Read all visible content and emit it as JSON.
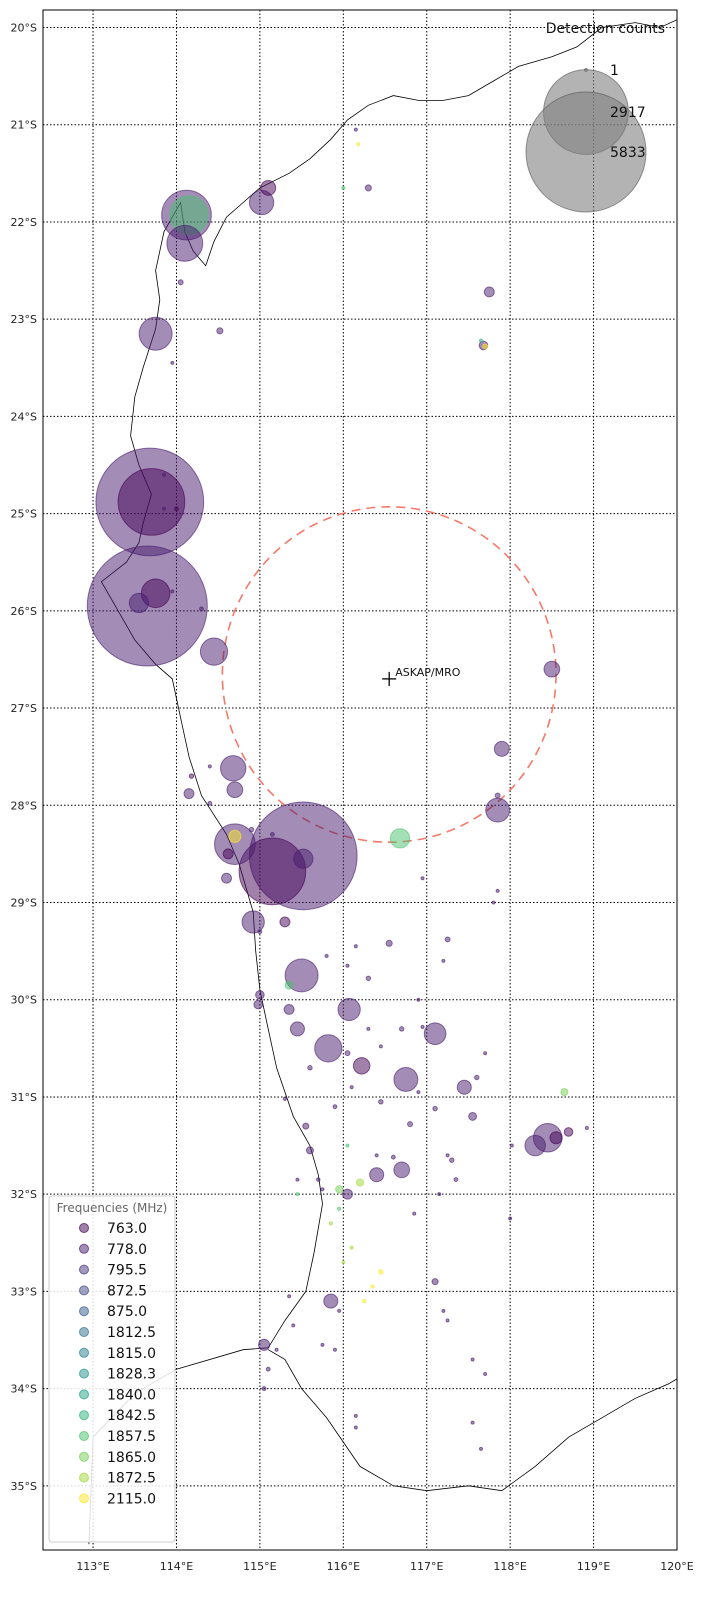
{
  "colors": {
    "grid": "#000000",
    "coast": "#000000",
    "ring": "#f4796b",
    "size_legend_fill": "#808080",
    "legend_border": "#cccccc"
  },
  "map": {
    "lon_range": [
      112.4,
      120.0
    ],
    "lat_range": [
      -35.66,
      -19.82
    ],
    "lon_ticks": [
      113,
      114,
      115,
      116,
      117,
      118,
      119,
      120
    ],
    "lon_tick_labels": [
      "113°E",
      "114°E",
      "115°E",
      "116°E",
      "117°E",
      "118°E",
      "119°E",
      "120°E"
    ],
    "lat_ticks": [
      -20,
      -21,
      -22,
      -23,
      -24,
      -25,
      -26,
      -27,
      -28,
      -29,
      -30,
      -31,
      -32,
      -33,
      -34,
      -35
    ],
    "lat_tick_labels": [
      "20°S",
      "21°S",
      "22°S",
      "23°S",
      "24°S",
      "25°S",
      "26°S",
      "27°S",
      "28°S",
      "29°S",
      "30°S",
      "31°S",
      "32°S",
      "33°S",
      "34°S",
      "35°S"
    ],
    "grid": "dotted"
  },
  "site": {
    "label": "ASKAP/MRO",
    "lon": 116.55,
    "lat": -26.7,
    "ring_lon_span": [
      114.55,
      118.55
    ],
    "ring_lat_span": [
      -28.38,
      -24.93
    ]
  },
  "coastline": [
    [
      112.95,
      -35.6
    ],
    [
      113.0,
      -34.5
    ],
    [
      113.5,
      -34.05
    ],
    [
      114.0,
      -33.8
    ],
    [
      114.8,
      -33.6
    ],
    [
      115.1,
      -33.58
    ],
    [
      115.3,
      -33.3
    ],
    [
      115.55,
      -33.0
    ],
    [
      115.65,
      -32.6
    ],
    [
      115.75,
      -32.1
    ],
    [
      115.7,
      -31.8
    ],
    [
      115.6,
      -31.5
    ],
    [
      115.4,
      -31.2
    ],
    [
      115.2,
      -30.7
    ],
    [
      115.1,
      -30.3
    ],
    [
      115.0,
      -29.9
    ],
    [
      114.95,
      -29.5
    ],
    [
      114.92,
      -29.1
    ],
    [
      114.75,
      -28.6
    ],
    [
      114.6,
      -28.3
    ],
    [
      114.3,
      -27.9
    ],
    [
      114.15,
      -27.5
    ],
    [
      114.05,
      -27.1
    ],
    [
      113.95,
      -26.7
    ],
    [
      113.75,
      -26.55
    ],
    [
      113.5,
      -26.3
    ],
    [
      113.3,
      -26.0
    ],
    [
      113.1,
      -25.7
    ],
    [
      113.4,
      -25.5
    ],
    [
      113.55,
      -25.3
    ],
    [
      113.6,
      -25.1
    ],
    [
      113.7,
      -24.8
    ],
    [
      113.55,
      -24.5
    ],
    [
      113.45,
      -24.2
    ],
    [
      113.5,
      -23.8
    ],
    [
      113.6,
      -23.5
    ],
    [
      113.75,
      -23.1
    ],
    [
      113.8,
      -22.8
    ],
    [
      113.75,
      -22.5
    ],
    [
      113.85,
      -22.1
    ],
    [
      114.05,
      -21.8
    ],
    [
      114.1,
      -22.1
    ],
    [
      114.2,
      -22.3
    ],
    [
      114.35,
      -22.45
    ],
    [
      114.45,
      -22.2
    ],
    [
      114.6,
      -21.95
    ],
    [
      114.8,
      -21.8
    ],
    [
      115.0,
      -21.65
    ],
    [
      115.35,
      -21.5
    ],
    [
      115.6,
      -21.35
    ],
    [
      115.85,
      -21.15
    ],
    [
      116.05,
      -20.95
    ],
    [
      116.3,
      -20.8
    ],
    [
      116.6,
      -20.7
    ],
    [
      116.9,
      -20.75
    ],
    [
      117.2,
      -20.75
    ],
    [
      117.5,
      -20.7
    ],
    [
      117.8,
      -20.55
    ],
    [
      118.1,
      -20.4
    ],
    [
      118.5,
      -20.3
    ],
    [
      118.8,
      -20.2
    ],
    [
      119.1,
      -20.0
    ],
    [
      119.5,
      -19.95
    ],
    [
      119.8,
      -20.0
    ],
    [
      120.0,
      -19.92
    ]
  ],
  "south_coast": [
    [
      115.1,
      -33.6
    ],
    [
      115.3,
      -33.7
    ],
    [
      115.5,
      -34.0
    ],
    [
      115.8,
      -34.3
    ],
    [
      116.2,
      -34.8
    ],
    [
      116.6,
      -35.0
    ],
    [
      117.0,
      -35.05
    ],
    [
      117.5,
      -35.0
    ],
    [
      117.9,
      -35.05
    ],
    [
      118.3,
      -34.8
    ],
    [
      118.7,
      -34.5
    ],
    [
      119.1,
      -34.3
    ],
    [
      119.5,
      -34.1
    ],
    [
      119.9,
      -33.95
    ],
    [
      120.0,
      -33.9
    ]
  ],
  "frequency_legend": {
    "title": "Frequencies (MHz)",
    "items": [
      {
        "label": "763.0",
        "color": "#440154"
      },
      {
        "label": "778.0",
        "color": "#481b6d"
      },
      {
        "label": "795.5",
        "color": "#46327e"
      },
      {
        "label": "872.5",
        "color": "#3f4788"
      },
      {
        "label": "875.0",
        "color": "#365c8d"
      },
      {
        "label": "1812.5",
        "color": "#2e6e8e"
      },
      {
        "label": "1815.0",
        "color": "#277f8e"
      },
      {
        "label": "1828.3",
        "color": "#21918c"
      },
      {
        "label": "1840.0",
        "color": "#1fa187"
      },
      {
        "label": "1842.5",
        "color": "#2db27d"
      },
      {
        "label": "1857.5",
        "color": "#4ac16d"
      },
      {
        "label": "1865.0",
        "color": "#73d056"
      },
      {
        "label": "1872.5",
        "color": "#a0da39"
      },
      {
        "label": "2115.0",
        "color": "#fde725"
      }
    ]
  },
  "size_legend": {
    "title": "Detection counts",
    "items": [
      {
        "label": "1",
        "count": 1
      },
      {
        "label": "2917",
        "count": 2917
      },
      {
        "label": "5833",
        "count": 5833
      }
    ]
  },
  "detections": [
    {
      "lon": 113.65,
      "lat": -25.95,
      "count": 5833,
      "color": "#481b6d"
    },
    {
      "lon": 113.68,
      "lat": -24.88,
      "count": 4700,
      "color": "#481b6d"
    },
    {
      "lon": 113.7,
      "lat": -24.88,
      "count": 1800,
      "color": "#440154"
    },
    {
      "lon": 115.52,
      "lat": -28.52,
      "count": 4700,
      "color": "#481b6d"
    },
    {
      "lon": 115.15,
      "lat": -28.68,
      "count": 1800,
      "color": "#440154"
    },
    {
      "lon": 114.12,
      "lat": -21.93,
      "count": 1000,
      "color": "#481b6d"
    },
    {
      "lon": 114.15,
      "lat": -21.93,
      "count": 600,
      "color": "#4ac16d"
    },
    {
      "lon": 114.1,
      "lat": -22.22,
      "count": 520,
      "color": "#481b6d"
    },
    {
      "lon": 113.75,
      "lat": -23.15,
      "count": 440,
      "color": "#481b6d"
    },
    {
      "lon": 113.75,
      "lat": -25.82,
      "count": 330,
      "color": "#440154"
    },
    {
      "lon": 113.55,
      "lat": -25.92,
      "count": 150,
      "color": "#481b6d"
    },
    {
      "lon": 114.45,
      "lat": -26.42,
      "count": 300,
      "color": "#481b6d"
    },
    {
      "lon": 114.7,
      "lat": -28.4,
      "count": 670,
      "color": "#481b6d"
    },
    {
      "lon": 114.7,
      "lat": -28.32,
      "count": 60,
      "color": "#fde725"
    },
    {
      "lon": 114.68,
      "lat": -27.62,
      "count": 260,
      "color": "#481b6d"
    },
    {
      "lon": 114.7,
      "lat": -27.84,
      "count": 100,
      "color": "#481b6d"
    },
    {
      "lon": 114.92,
      "lat": -29.2,
      "count": 200,
      "color": "#481b6d"
    },
    {
      "lon": 115.5,
      "lat": -29.75,
      "count": 440,
      "color": "#481b6d"
    },
    {
      "lon": 115.52,
      "lat": -28.55,
      "count": 150,
      "color": "#481b6d"
    },
    {
      "lon": 115.02,
      "lat": -21.8,
      "count": 240,
      "color": "#481b6d"
    },
    {
      "lon": 115.1,
      "lat": -21.65,
      "count": 90,
      "color": "#440154"
    },
    {
      "lon": 116.68,
      "lat": -28.34,
      "count": 150,
      "color": "#4ac16d"
    },
    {
      "lon": 117.85,
      "lat": -28.05,
      "count": 230,
      "color": "#481b6d"
    },
    {
      "lon": 117.9,
      "lat": -27.42,
      "count": 90,
      "color": "#481b6d"
    },
    {
      "lon": 118.5,
      "lat": -26.6,
      "count": 100,
      "color": "#481b6d"
    },
    {
      "lon": 115.82,
      "lat": -30.5,
      "count": 300,
      "color": "#481b6d"
    },
    {
      "lon": 116.07,
      "lat": -30.1,
      "count": 200,
      "color": "#481b6d"
    },
    {
      "lon": 116.22,
      "lat": -30.68,
      "count": 110,
      "color": "#440154"
    },
    {
      "lon": 116.75,
      "lat": -30.82,
      "count": 230,
      "color": "#481b6d"
    },
    {
      "lon": 117.1,
      "lat": -30.35,
      "count": 190,
      "color": "#481b6d"
    },
    {
      "lon": 117.45,
      "lat": -30.9,
      "count": 80,
      "color": "#481b6d"
    },
    {
      "lon": 118.45,
      "lat": -31.42,
      "count": 330,
      "color": "#481b6d"
    },
    {
      "lon": 118.3,
      "lat": -31.5,
      "count": 170,
      "color": "#481b6d"
    },
    {
      "lon": 118.55,
      "lat": -31.42,
      "count": 60,
      "color": "#440154"
    },
    {
      "lon": 118.7,
      "lat": -31.36,
      "count": 30,
      "color": "#440154"
    },
    {
      "lon": 116.7,
      "lat": -31.75,
      "count": 100,
      "color": "#481b6d"
    },
    {
      "lon": 116.4,
      "lat": -31.8,
      "count": 80,
      "color": "#481b6d"
    },
    {
      "lon": 115.45,
      "lat": -30.3,
      "count": 80,
      "color": "#481b6d"
    },
    {
      "lon": 115.35,
      "lat": -30.1,
      "count": 40,
      "color": "#481b6d"
    },
    {
      "lon": 115.3,
      "lat": -29.2,
      "count": 40,
      "color": "#440154"
    },
    {
      "lon": 115.85,
      "lat": -33.1,
      "count": 80,
      "color": "#481b6d"
    },
    {
      "lon": 115.05,
      "lat": -33.55,
      "count": 50,
      "color": "#481b6d"
    },
    {
      "lon": 116.05,
      "lat": -32.0,
      "count": 40,
      "color": "#481b6d"
    },
    {
      "lon": 117.75,
      "lat": -22.72,
      "count": 40,
      "color": "#481b6d"
    },
    {
      "lon": 117.68,
      "lat": -23.27,
      "count": 30,
      "color": "#481b6d"
    },
    {
      "lon": 117.7,
      "lat": -23.28,
      "count": 10,
      "color": "#fde725"
    },
    {
      "lon": 115.0,
      "lat": -29.95,
      "count": 30,
      "color": "#481b6d"
    },
    {
      "lon": 114.98,
      "lat": -30.05,
      "count": 30,
      "color": "#481b6d"
    },
    {
      "lon": 114.6,
      "lat": -28.75,
      "count": 40,
      "color": "#481b6d"
    },
    {
      "lon": 114.62,
      "lat": -28.5,
      "count": 40,
      "color": "#440154"
    },
    {
      "lon": 114.15,
      "lat": -27.88,
      "count": 40,
      "color": "#481b6d"
    },
    {
      "lon": 115.35,
      "lat": -29.85,
      "count": 25,
      "color": "#4ac16d"
    },
    {
      "lon": 118.65,
      "lat": -30.95,
      "count": 20,
      "color": "#73d056"
    },
    {
      "lon": 117.55,
      "lat": -31.2,
      "count": 25,
      "color": "#481b6d"
    },
    {
      "lon": 116.55,
      "lat": -29.42,
      "count": 15,
      "color": "#481b6d"
    },
    {
      "lon": 117.1,
      "lat": -32.9,
      "count": 15,
      "color": "#481b6d"
    },
    {
      "lon": 116.3,
      "lat": -21.65,
      "count": 15,
      "color": "#481b6d"
    },
    {
      "lon": 114.52,
      "lat": -23.12,
      "count": 15,
      "color": "#481b6d"
    },
    {
      "lon": 114.05,
      "lat": -22.62,
      "count": 10,
      "color": "#481b6d"
    },
    {
      "lon": 116.2,
      "lat": -31.88,
      "count": 20,
      "color": "#a0da39"
    },
    {
      "lon": 115.95,
      "lat": -31.95,
      "count": 20,
      "color": "#73d056"
    },
    {
      "lon": 115.6,
      "lat": -31.55,
      "count": 20,
      "color": "#481b6d"
    },
    {
      "lon": 115.55,
      "lat": -31.3,
      "count": 15,
      "color": "#481b6d"
    },
    {
      "lon": 116.45,
      "lat": -32.8,
      "count": 8,
      "color": "#fde725"
    },
    {
      "lon": 116.25,
      "lat": -33.1,
      "count": 5,
      "color": "#fde725"
    },
    {
      "lon": 116.18,
      "lat": -21.2,
      "count": 4,
      "color": "#fde725"
    },
    {
      "lon": 117.25,
      "lat": -29.38,
      "count": 10,
      "color": "#481b6d"
    },
    {
      "lon": 116.8,
      "lat": -31.28,
      "count": 10,
      "color": "#481b6d"
    },
    {
      "lon": 117.6,
      "lat": -30.8,
      "count": 8,
      "color": "#481b6d"
    },
    {
      "lon": 116.3,
      "lat": -29.78,
      "count": 8,
      "color": "#481b6d"
    },
    {
      "lon": 115.6,
      "lat": -30.7,
      "count": 8,
      "color": "#481b6d"
    },
    {
      "lon": 116.05,
      "lat": -30.55,
      "count": 10,
      "color": "#481b6d"
    },
    {
      "lon": 116.7,
      "lat": -30.3,
      "count": 8,
      "color": "#481b6d"
    },
    {
      "lon": 117.3,
      "lat": -31.65,
      "count": 8,
      "color": "#481b6d"
    },
    {
      "lon": 117.1,
      "lat": -31.12,
      "count": 8,
      "color": "#481b6d"
    },
    {
      "lon": 116.45,
      "lat": -31.05,
      "count": 8,
      "color": "#481b6d"
    },
    {
      "lon": 115.9,
      "lat": -31.1,
      "count": 6,
      "color": "#481b6d"
    },
    {
      "lon": 117.35,
      "lat": -31.85,
      "count": 6,
      "color": "#481b6d"
    },
    {
      "lon": 116.6,
      "lat": -31.62,
      "count": 6,
      "color": "#481b6d"
    },
    {
      "lon": 115.1,
      "lat": -33.8,
      "count": 6,
      "color": "#481b6d"
    },
    {
      "lon": 115.05,
      "lat": -34.0,
      "count": 6,
      "color": "#481b6d"
    },
    {
      "lon": 115.0,
      "lat": -29.3,
      "count": 6,
      "color": "#481b6d"
    },
    {
      "lon": 114.9,
      "lat": -28.25,
      "count": 8,
      "color": "#481b6d"
    },
    {
      "lon": 115.15,
      "lat": -28.3,
      "count": 6,
      "color": "#481b6d"
    },
    {
      "lon": 114.4,
      "lat": -27.98,
      "count": 6,
      "color": "#481b6d"
    },
    {
      "lon": 114.4,
      "lat": -27.6,
      "count": 4,
      "color": "#481b6d"
    },
    {
      "lon": 114.0,
      "lat": -24.95,
      "count": 6,
      "color": "#440154"
    },
    {
      "lon": 113.95,
      "lat": -23.45,
      "count": 3,
      "color": "#481b6d"
    },
    {
      "lon": 114.3,
      "lat": -25.98,
      "count": 6,
      "color": "#481b6d"
    },
    {
      "lon": 114.18,
      "lat": -27.7,
      "count": 8,
      "color": "#440154"
    },
    {
      "lon": 117.85,
      "lat": -27.9,
      "count": 10,
      "color": "#481b6d"
    },
    {
      "lon": 117.85,
      "lat": -28.88,
      "count": 4,
      "color": "#481b6d"
    },
    {
      "lon": 117.8,
      "lat": -29.0,
      "count": 3,
      "color": "#481b6d"
    },
    {
      "lon": 116.95,
      "lat": -28.75,
      "count": 3,
      "color": "#481b6d"
    },
    {
      "lon": 117.65,
      "lat": -23.22,
      "count": 3,
      "color": "#2db27d"
    },
    {
      "lon": 116.15,
      "lat": -21.05,
      "count": 3,
      "color": "#481b6d"
    },
    {
      "lon": 116.0,
      "lat": -21.65,
      "count": 2,
      "color": "#4ac16d"
    },
    {
      "lon": 116.85,
      "lat": -32.2,
      "count": 3,
      "color": "#481b6d"
    },
    {
      "lon": 117.2,
      "lat": -33.2,
      "count": 3,
      "color": "#481b6d"
    },
    {
      "lon": 117.25,
      "lat": -33.3,
      "count": 3,
      "color": "#481b6d"
    },
    {
      "lon": 117.55,
      "lat": -33.7,
      "count": 3,
      "color": "#481b6d"
    },
    {
      "lon": 117.7,
      "lat": -33.85,
      "count": 3,
      "color": "#481b6d"
    },
    {
      "lon": 116.15,
      "lat": -34.4,
      "count": 3,
      "color": "#481b6d"
    },
    {
      "lon": 116.15,
      "lat": -34.28,
      "count": 3,
      "color": "#481b6d"
    },
    {
      "lon": 117.55,
      "lat": -34.35,
      "count": 3,
      "color": "#481b6d"
    },
    {
      "lon": 117.65,
      "lat": -34.62,
      "count": 3,
      "color": "#481b6d"
    },
    {
      "lon": 118.0,
      "lat": -32.25,
      "count": 3,
      "color": "#481b6d"
    },
    {
      "lon": 118.02,
      "lat": -31.5,
      "count": 3,
      "color": "#481b6d"
    },
    {
      "lon": 118.92,
      "lat": -31.32,
      "count": 3,
      "color": "#481b6d"
    },
    {
      "lon": 115.95,
      "lat": -33.2,
      "count": 4,
      "color": "#481b6d"
    },
    {
      "lon": 115.9,
      "lat": -33.6,
      "count": 3,
      "color": "#481b6d"
    },
    {
      "lon": 115.75,
      "lat": -33.55,
      "count": 3,
      "color": "#481b6d"
    },
    {
      "lon": 115.85,
      "lat": -32.3,
      "count": 4,
      "color": "#a0da39"
    },
    {
      "lon": 116.1,
      "lat": -32.55,
      "count": 3,
      "color": "#a0da39"
    },
    {
      "lon": 116.0,
      "lat": -32.7,
      "count": 3,
      "color": "#a0da39"
    },
    {
      "lon": 116.35,
      "lat": -32.95,
      "count": 3,
      "color": "#fde725"
    },
    {
      "lon": 115.7,
      "lat": -31.85,
      "count": 5,
      "color": "#481b6d"
    },
    {
      "lon": 115.75,
      "lat": -31.95,
      "count": 4,
      "color": "#481b6d"
    },
    {
      "lon": 115.95,
      "lat": -32.15,
      "count": 4,
      "color": "#4ac16d"
    },
    {
      "lon": 116.05,
      "lat": -31.5,
      "count": 4,
      "color": "#4ac16d"
    },
    {
      "lon": 116.4,
      "lat": -31.6,
      "count": 4,
      "color": "#481b6d"
    },
    {
      "lon": 116.1,
      "lat": -30.9,
      "count": 4,
      "color": "#481b6d"
    },
    {
      "lon": 116.05,
      "lat": -29.65,
      "count": 4,
      "color": "#481b6d"
    },
    {
      "lon": 116.15,
      "lat": -29.45,
      "count": 4,
      "color": "#481b6d"
    },
    {
      "lon": 115.8,
      "lat": -29.55,
      "count": 4,
      "color": "#481b6d"
    },
    {
      "lon": 117.2,
      "lat": -29.6,
      "count": 3,
      "color": "#481b6d"
    },
    {
      "lon": 116.9,
      "lat": -30.95,
      "count": 3,
      "color": "#481b6d"
    },
    {
      "lon": 116.95,
      "lat": -30.28,
      "count": 4,
      "color": "#481b6d"
    },
    {
      "lon": 117.25,
      "lat": -31.6,
      "count": 4,
      "color": "#481b6d"
    },
    {
      "lon": 116.3,
      "lat": -30.3,
      "count": 3,
      "color": "#481b6d"
    },
    {
      "lon": 116.45,
      "lat": -30.48,
      "count": 3,
      "color": "#481b6d"
    },
    {
      "lon": 117.7,
      "lat": -30.55,
      "count": 3,
      "color": "#481b6d"
    },
    {
      "lon": 116.9,
      "lat": -30.0,
      "count": 3,
      "color": "#481b6d"
    },
    {
      "lon": 117.15,
      "lat": -32.0,
      "count": 3,
      "color": "#481b6d"
    },
    {
      "lon": 115.45,
      "lat": -31.85,
      "count": 3,
      "color": "#481b6d"
    },
    {
      "lon": 115.3,
      "lat": -31.02,
      "count": 4,
      "color": "#481b6d"
    },
    {
      "lon": 115.45,
      "lat": -32.0,
      "count": 3,
      "color": "#4ac16d"
    },
    {
      "lon": 115.35,
      "lat": -33.05,
      "count": 3,
      "color": "#481b6d"
    },
    {
      "lon": 115.4,
      "lat": -33.35,
      "count": 3,
      "color": "#481b6d"
    },
    {
      "lon": 115.2,
      "lat": -33.6,
      "count": 3,
      "color": "#481b6d"
    },
    {
      "lon": 113.85,
      "lat": -24.6,
      "count": 3,
      "color": "#481b6d"
    },
    {
      "lon": 113.85,
      "lat": -24.95,
      "count": 3,
      "color": "#481b6d"
    },
    {
      "lon": 113.95,
      "lat": -25.8,
      "count": 3,
      "color": "#481b6d"
    }
  ]
}
